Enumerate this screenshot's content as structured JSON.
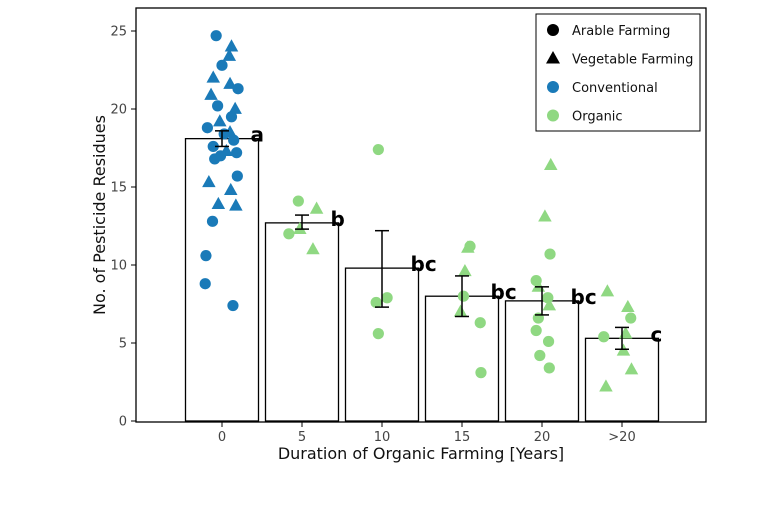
{
  "chart_data": {
    "type": "bar",
    "categories": [
      "0",
      "5",
      "10",
      "15",
      "20",
      ">20"
    ],
    "values": [
      18.1,
      12.7,
      9.8,
      8.0,
      7.7,
      5.3
    ],
    "error_low": [
      17.6,
      12.3,
      7.3,
      6.7,
      6.8,
      4.6
    ],
    "error_high": [
      18.6,
      13.2,
      12.2,
      9.3,
      8.6,
      6.0
    ],
    "significance_letters": [
      "a",
      "b",
      "bc",
      "bc",
      "bc",
      "c"
    ],
    "xlabel": "Duration of Organic Farming [Years]",
    "ylabel": "No. of Pesticide Residues",
    "ylim": [
      0,
      26
    ],
    "yticks": [
      0,
      5,
      10,
      15,
      20,
      25
    ],
    "grid": false,
    "legend": {
      "placement": "top-right",
      "entries": [
        {
          "label": "Arable Farming",
          "marker": "circle",
          "color": "#000000"
        },
        {
          "label": "Vegetable Farming",
          "marker": "triangle",
          "color": "#000000"
        },
        {
          "label": "Conventional",
          "marker": "circle",
          "color": "#1a7ab8"
        },
        {
          "label": "Organic",
          "marker": "circle",
          "color": "#8fd882"
        }
      ]
    },
    "colors": {
      "conventional": "#1a7ab8",
      "organic": "#8fd882",
      "bar_fill": "#ffffff",
      "bar_edge": "#000000"
    },
    "series": [
      {
        "group": "Conventional",
        "farming": "Arable",
        "marker": "circle",
        "points": [
          {
            "cat": 0,
            "y": 24.7,
            "j": -0.08
          },
          {
            "cat": 0,
            "y": 22.8,
            "j": 0.0
          },
          {
            "cat": 0,
            "y": 21.3,
            "j": 0.22
          },
          {
            "cat": 0,
            "y": 20.2,
            "j": -0.06
          },
          {
            "cat": 0,
            "y": 19.5,
            "j": 0.13
          },
          {
            "cat": 0,
            "y": 18.8,
            "j": -0.2
          },
          {
            "cat": 0,
            "y": 18.4,
            "j": 0.03
          },
          {
            "cat": 0,
            "y": 18.0,
            "j": 0.16
          },
          {
            "cat": 0,
            "y": 17.6,
            "j": -0.12
          },
          {
            "cat": 0,
            "y": 17.2,
            "j": 0.2
          },
          {
            "cat": 0,
            "y": 17.0,
            "j": -0.02
          },
          {
            "cat": 0,
            "y": 16.8,
            "j": -0.1
          },
          {
            "cat": 0,
            "y": 15.7,
            "j": 0.21
          },
          {
            "cat": 0,
            "y": 12.8,
            "j": -0.13
          },
          {
            "cat": 0,
            "y": 10.6,
            "j": -0.22
          },
          {
            "cat": 0,
            "y": 8.8,
            "j": -0.23
          },
          {
            "cat": 0,
            "y": 7.4,
            "j": 0.15
          }
        ]
      },
      {
        "group": "Conventional",
        "farming": "Vegetable",
        "marker": "triangle",
        "points": [
          {
            "cat": 0,
            "y": 24.0,
            "j": 0.13
          },
          {
            "cat": 0,
            "y": 23.4,
            "j": 0.1
          },
          {
            "cat": 0,
            "y": 22.0,
            "j": -0.12
          },
          {
            "cat": 0,
            "y": 21.6,
            "j": 0.11
          },
          {
            "cat": 0,
            "y": 20.9,
            "j": -0.15
          },
          {
            "cat": 0,
            "y": 20.0,
            "j": 0.18
          },
          {
            "cat": 0,
            "y": 19.2,
            "j": -0.03
          },
          {
            "cat": 0,
            "y": 18.5,
            "j": 0.11
          },
          {
            "cat": 0,
            "y": 17.3,
            "j": 0.06
          },
          {
            "cat": 0,
            "y": 15.3,
            "j": -0.18
          },
          {
            "cat": 0,
            "y": 14.8,
            "j": 0.12
          },
          {
            "cat": 0,
            "y": 13.9,
            "j": -0.05
          },
          {
            "cat": 0,
            "y": 13.8,
            "j": 0.19
          }
        ]
      },
      {
        "group": "Organic",
        "farming": "Arable",
        "marker": "circle",
        "points": [
          {
            "cat": 1,
            "y": 14.1,
            "j": -0.05
          },
          {
            "cat": 1,
            "y": 12.0,
            "j": -0.18
          },
          {
            "cat": 2,
            "y": 17.4,
            "j": -0.05
          },
          {
            "cat": 2,
            "y": 7.9,
            "j": 0.07
          },
          {
            "cat": 2,
            "y": 7.6,
            "j": -0.08
          },
          {
            "cat": 2,
            "y": 5.6,
            "j": -0.05
          },
          {
            "cat": 3,
            "y": 11.2,
            "j": 0.11
          },
          {
            "cat": 3,
            "y": 8.0,
            "j": 0.02
          },
          {
            "cat": 3,
            "y": 6.3,
            "j": 0.25
          },
          {
            "cat": 3,
            "y": 3.1,
            "j": 0.26
          },
          {
            "cat": 4,
            "y": 10.7,
            "j": 0.11
          },
          {
            "cat": 4,
            "y": 9.0,
            "j": -0.08
          },
          {
            "cat": 4,
            "y": 7.9,
            "j": 0.08
          },
          {
            "cat": 4,
            "y": 6.6,
            "j": -0.05
          },
          {
            "cat": 4,
            "y": 5.8,
            "j": -0.08
          },
          {
            "cat": 4,
            "y": 5.1,
            "j": 0.09
          },
          {
            "cat": 4,
            "y": 4.2,
            "j": -0.03
          },
          {
            "cat": 4,
            "y": 3.4,
            "j": 0.1
          },
          {
            "cat": 5,
            "y": 6.6,
            "j": 0.12
          },
          {
            "cat": 5,
            "y": 5.4,
            "j": -0.25
          }
        ]
      },
      {
        "group": "Organic",
        "farming": "Vegetable",
        "marker": "triangle",
        "points": [
          {
            "cat": 1,
            "y": 13.6,
            "j": 0.2
          },
          {
            "cat": 1,
            "y": 12.3,
            "j": -0.03
          },
          {
            "cat": 1,
            "y": 11.0,
            "j": 0.15
          },
          {
            "cat": 3,
            "y": 11.1,
            "j": 0.08
          },
          {
            "cat": 3,
            "y": 9.6,
            "j": 0.04
          },
          {
            "cat": 3,
            "y": 7.0,
            "j": -0.02
          },
          {
            "cat": 4,
            "y": 16.4,
            "j": 0.12
          },
          {
            "cat": 4,
            "y": 13.1,
            "j": 0.04
          },
          {
            "cat": 4,
            "y": 8.6,
            "j": -0.05
          },
          {
            "cat": 4,
            "y": 7.4,
            "j": 0.1
          },
          {
            "cat": 5,
            "y": 8.3,
            "j": -0.2
          },
          {
            "cat": 5,
            "y": 7.3,
            "j": 0.08
          },
          {
            "cat": 5,
            "y": 5.6,
            "j": 0.05
          },
          {
            "cat": 5,
            "y": 4.5,
            "j": 0.02
          },
          {
            "cat": 5,
            "y": 3.3,
            "j": 0.13
          },
          {
            "cat": 5,
            "y": 2.2,
            "j": -0.22
          }
        ]
      }
    ]
  }
}
